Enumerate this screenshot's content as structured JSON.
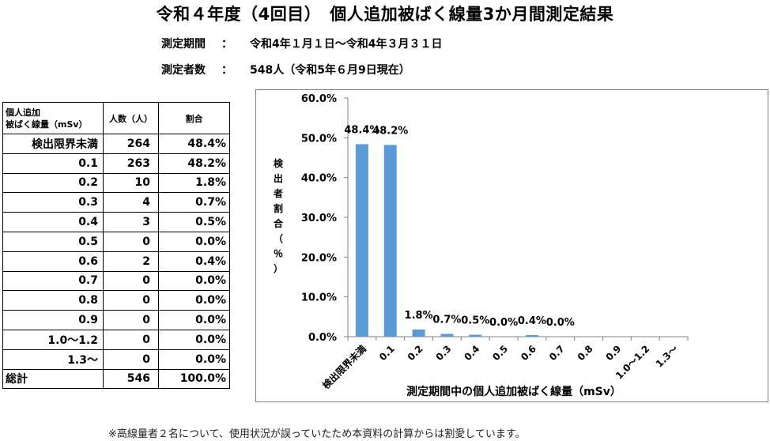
{
  "header": {
    "title": "令和４年度（4回目）　個人追加被ばく線量3か月間測定結果",
    "period_label": "測定期間",
    "period_sep": "：",
    "period_value": "令和4年１月１日～令和4年３月３１日",
    "count_label": "測定者数",
    "count_sep": "：",
    "count_value": "548人（令和5年６月9日現在）"
  },
  "table": {
    "head": {
      "col1_line1": "個人追加",
      "col1_line2": "被ばく線量（mSv）",
      "col2": "人数（人）",
      "col3": "割合"
    },
    "rows": [
      {
        "dose": "検出限界未満",
        "count": "264",
        "pct": "48.4%"
      },
      {
        "dose": "0.1",
        "count": "263",
        "pct": "48.2%"
      },
      {
        "dose": "0.2",
        "count": "10",
        "pct": "1.8%"
      },
      {
        "dose": "0.3",
        "count": "4",
        "pct": "0.7%"
      },
      {
        "dose": "0.4",
        "count": "3",
        "pct": "0.5%"
      },
      {
        "dose": "0.5",
        "count": "0",
        "pct": "0.0%"
      },
      {
        "dose": "0.6",
        "count": "2",
        "pct": "0.4%"
      },
      {
        "dose": "0.7",
        "count": "0",
        "pct": "0.0%"
      },
      {
        "dose": "0.8",
        "count": "0",
        "pct": "0.0%"
      },
      {
        "dose": "0.9",
        "count": "0",
        "pct": "0.0%"
      },
      {
        "dose": "1.0～1.2",
        "count": "0",
        "pct": "0.0%"
      },
      {
        "dose": "1.3～",
        "count": "0",
        "pct": "0.0%"
      }
    ],
    "total": {
      "label": "総計",
      "count": "546",
      "pct": "100.0%"
    }
  },
  "chart_data": {
    "type": "bar",
    "categories": [
      "検出限界未満",
      "0.1",
      "0.2",
      "0.3",
      "0.4",
      "0.5",
      "0.6",
      "0.7",
      "0.8",
      "0.9",
      "1.0～1.2",
      "1.3～"
    ],
    "values": [
      48.4,
      48.2,
      1.8,
      0.7,
      0.5,
      0.0,
      0.4,
      0.0,
      null,
      null,
      null,
      null
    ],
    "data_labels": [
      "48.4%",
      "48.2%",
      "1.8%",
      "0.7%",
      "0.5%",
      "0.0%",
      "0.4%",
      "0.0%",
      "",
      "",
      "",
      ""
    ],
    "yticks": [
      "0.0%",
      "10.0%",
      "20.0%",
      "30.0%",
      "40.0%",
      "50.0%",
      "60.0%"
    ],
    "ylim": [
      0,
      60
    ],
    "ylabel": "検出者割合（％）",
    "xlabel": "測定期間中の個人追加被ばく線量（mSv）",
    "bar_color": "#5b9bd5",
    "grid": false,
    "legend": "none"
  },
  "footnote": "※高線量者２名について、使用状況が誤っていたため本資料の計算からは割愛しています。"
}
